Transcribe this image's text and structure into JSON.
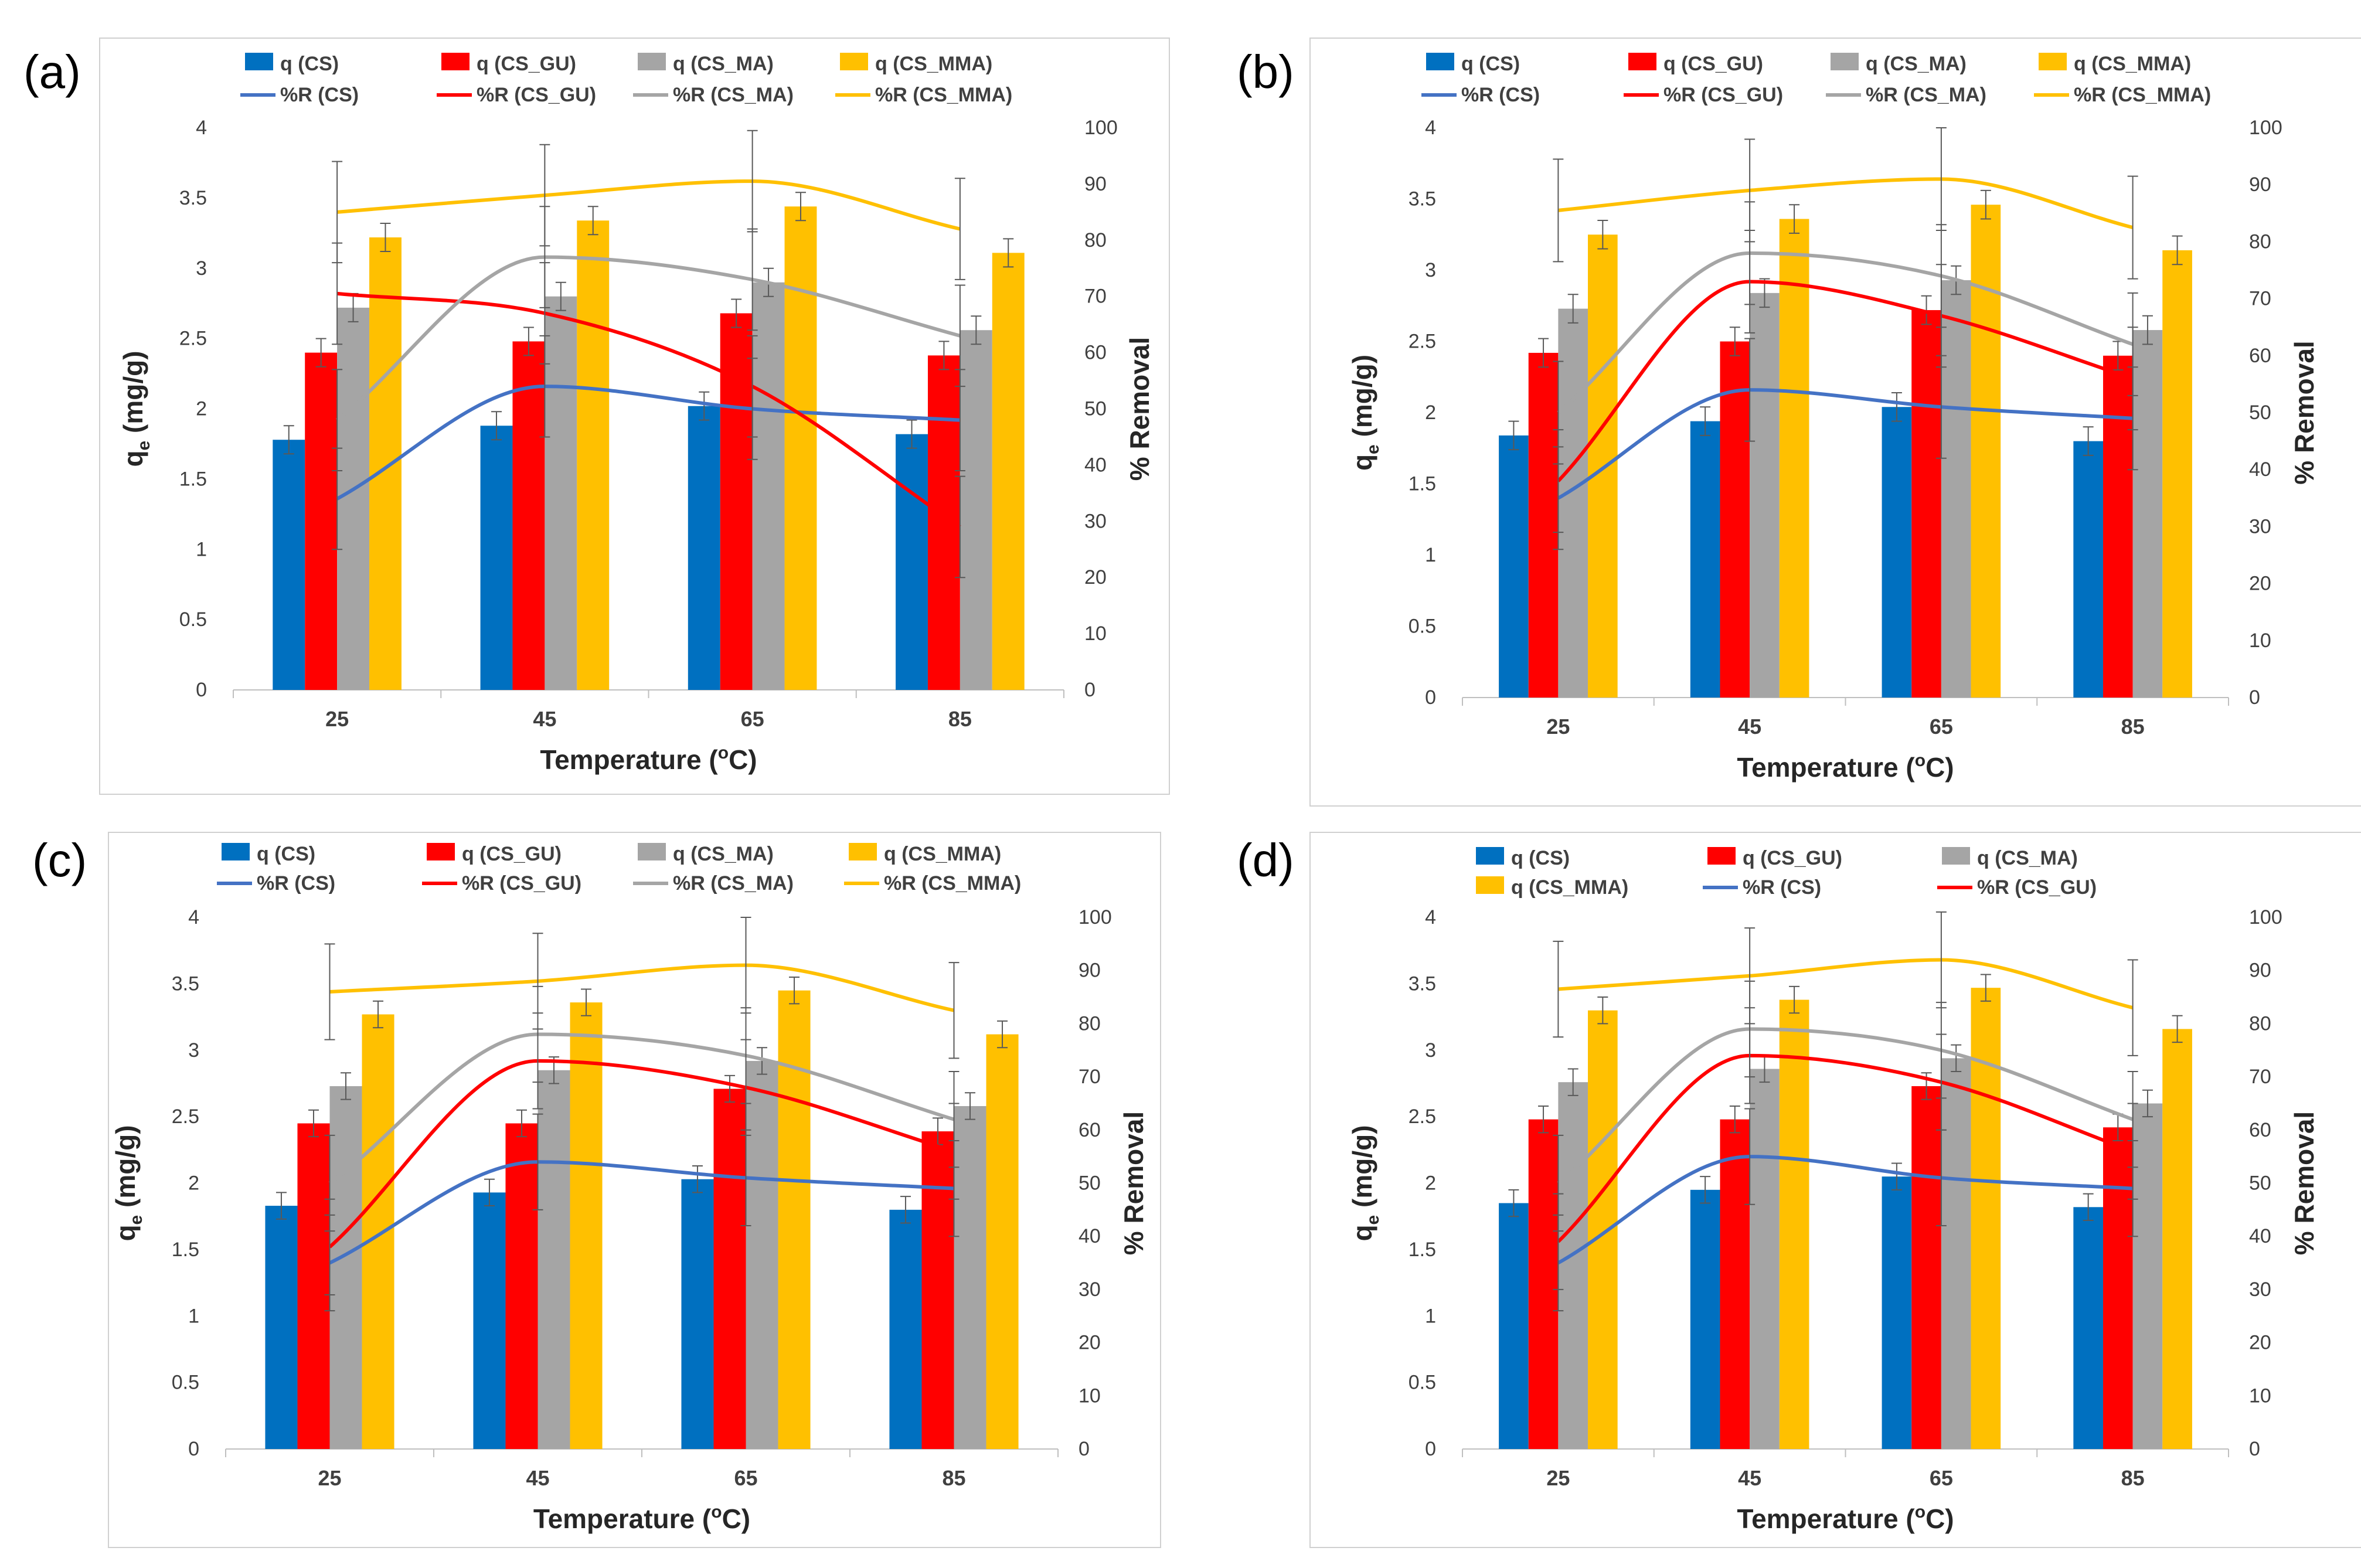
{
  "series_colors": {
    "q (CS)": "#0070c0",
    "q (CS_GU)": "#ff0000",
    "q (CS_MA)": "#a5a5a5",
    "q (CS_MMA)": "#ffc000",
    "%R (CS)": "#4472c4",
    "%R (CS_GU)": "#ff0000",
    "%R (CS_MA)": "#a5a5a5",
    "%R (CS_MMA)": "#ffc000"
  },
  "chart_data": [
    {
      "panel_label": "(a)",
      "type": "bar",
      "categories": [
        "25",
        "45",
        "65",
        "85"
      ],
      "xlabel": "Temperature (",
      "xlabel_sup": "o",
      "xlabel_suffix": "C)",
      "ylabel": "q",
      "ylabel_sub": "e",
      "ylabel_suffix": " (mg/g)",
      "y2label": "% Removal",
      "ylim": [
        0,
        4
      ],
      "y2lim": [
        0,
        100
      ],
      "yticks": [
        "0",
        "0.5",
        "1",
        "1.5",
        "2",
        "2.5",
        "3",
        "3.5",
        "4"
      ],
      "y2ticks": [
        "0",
        "10",
        "20",
        "30",
        "40",
        "50",
        "60",
        "70",
        "80",
        "90",
        "100"
      ],
      "legend_rows": [
        [
          "q (CS)",
          "q (CS_GU)",
          "q (CS_MA)",
          "q (CS_MMA)"
        ],
        [
          "%R (CS)",
          "%R (CS_GU)",
          "%R (CS_MA)",
          "%R (CS_MMA)"
        ]
      ],
      "bar_series": [
        {
          "name": "q (CS)",
          "values": [
            1.78,
            1.88,
            2.02,
            1.82
          ]
        },
        {
          "name": "q (CS_GU)",
          "values": [
            2.4,
            2.48,
            2.68,
            2.38
          ]
        },
        {
          "name": "q (CS_MA)",
          "values": [
            2.72,
            2.8,
            2.9,
            2.56
          ]
        },
        {
          "name": "q (CS_MMA)",
          "values": [
            3.22,
            3.34,
            3.44,
            3.11
          ]
        }
      ],
      "line_series": [
        {
          "name": "%R (CS)",
          "values": [
            34,
            54,
            50,
            48
          ]
        },
        {
          "name": "%R (CS_GU)",
          "values": [
            70.5,
            67,
            54,
            29
          ]
        },
        {
          "name": "%R (CS_MA)",
          "values": [
            48,
            77,
            73,
            63
          ]
        },
        {
          "name": "%R (CS_MMA)",
          "values": [
            85,
            88,
            90.5,
            82
          ]
        }
      ]
    },
    {
      "panel_label": "(b)",
      "type": "bar",
      "categories": [
        "25",
        "45",
        "65",
        "85"
      ],
      "xlabel": "Temperature (",
      "xlabel_sup": "o",
      "xlabel_suffix": "C)",
      "ylabel": "q",
      "ylabel_sub": "e",
      "ylabel_suffix": " (mg/g)",
      "y2label": "% Removal",
      "ylim": [
        0,
        4
      ],
      "y2lim": [
        0,
        100
      ],
      "yticks": [
        "0",
        "0.5",
        "1",
        "1.5",
        "2",
        "2.5",
        "3",
        "3.5",
        "4"
      ],
      "y2ticks": [
        "0",
        "10",
        "20",
        "30",
        "40",
        "50",
        "60",
        "70",
        "80",
        "90",
        "100"
      ],
      "legend_rows": [
        [
          "q (CS)",
          "q (CS_GU)",
          "q (CS_MA)",
          "q (CS_MMA)"
        ],
        [
          "%R (CS)",
          "%R (CS_GU)",
          "%R (CS_MA)",
          "%R (CS_MMA)"
        ]
      ],
      "bar_series": [
        {
          "name": "q (CS)",
          "values": [
            1.84,
            1.94,
            2.04,
            1.8
          ]
        },
        {
          "name": "q (CS_GU)",
          "values": [
            2.42,
            2.5,
            2.72,
            2.4
          ]
        },
        {
          "name": "q (CS_MA)",
          "values": [
            2.73,
            2.84,
            2.93,
            2.58
          ]
        },
        {
          "name": "q (CS_MMA)",
          "values": [
            3.25,
            3.36,
            3.46,
            3.14
          ]
        }
      ],
      "line_series": [
        {
          "name": "%R (CS)",
          "values": [
            35,
            54,
            51,
            49
          ]
        },
        {
          "name": "%R (CS_GU)",
          "values": [
            38,
            73,
            67,
            56
          ]
        },
        {
          "name": "%R (CS_MA)",
          "values": [
            50,
            78,
            74,
            62
          ]
        },
        {
          "name": "%R (CS_MMA)",
          "values": [
            85.5,
            89,
            91,
            82.5
          ]
        }
      ]
    },
    {
      "panel_label": "(c)",
      "type": "bar",
      "categories": [
        "25",
        "45",
        "65",
        "85"
      ],
      "xlabel": "Temperature (",
      "xlabel_sup": "o",
      "xlabel_suffix": "C)",
      "ylabel": "q",
      "ylabel_sub": "e",
      "ylabel_suffix": " (mg/g)",
      "y2label": "% Removal",
      "ylim": [
        0,
        4
      ],
      "y2lim": [
        0,
        100
      ],
      "yticks": [
        "0",
        "0.5",
        "1",
        "1.5",
        "2",
        "2.5",
        "3",
        "3.5",
        "4"
      ],
      "y2ticks": [
        "0",
        "10",
        "20",
        "30",
        "40",
        "50",
        "60",
        "70",
        "80",
        "90",
        "100"
      ],
      "legend_rows": [
        [
          "q (CS)",
          "q (CS_GU)",
          "q (CS_MA)",
          "q (CS_MMA)"
        ],
        [
          "%R (CS)",
          "%R (CS_GU)",
          "%R (CS_MA)",
          "%R (CS_MMA)"
        ]
      ],
      "bar_series": [
        {
          "name": "q (CS)",
          "values": [
            1.83,
            1.93,
            2.03,
            1.8
          ]
        },
        {
          "name": "q (CS_GU)",
          "values": [
            2.45,
            2.45,
            2.71,
            2.39
          ]
        },
        {
          "name": "q (CS_MA)",
          "values": [
            2.73,
            2.85,
            2.92,
            2.58
          ]
        },
        {
          "name": "q (CS_MMA)",
          "values": [
            3.27,
            3.36,
            3.45,
            3.12
          ]
        }
      ],
      "line_series": [
        {
          "name": "%R (CS)",
          "values": [
            35,
            54,
            51,
            49
          ]
        },
        {
          "name": "%R (CS_GU)",
          "values": [
            38,
            73,
            68,
            56
          ]
        },
        {
          "name": "%R (CS_MA)",
          "values": [
            50,
            78,
            74,
            62
          ]
        },
        {
          "name": "%R (CS_MMA)",
          "values": [
            86,
            88,
            91,
            82.5
          ]
        }
      ]
    },
    {
      "panel_label": "(d)",
      "type": "bar",
      "categories": [
        "25",
        "45",
        "65",
        "85"
      ],
      "xlabel": "Temperature (",
      "xlabel_sup": "o",
      "xlabel_suffix": "C)",
      "ylabel": "q",
      "ylabel_sub": "e",
      "ylabel_suffix": " (mg/g)",
      "y2label": "% Removal",
      "ylim": [
        0,
        4
      ],
      "y2lim": [
        0,
        100
      ],
      "yticks": [
        "0",
        "0.5",
        "1",
        "1.5",
        "2",
        "2.5",
        "3",
        "3.5",
        "4"
      ],
      "y2ticks": [
        "0",
        "10",
        "20",
        "30",
        "40",
        "50",
        "60",
        "70",
        "80",
        "90",
        "100"
      ],
      "legend_rows": [
        [
          "q (CS)",
          "q (CS_GU)",
          "q (CS_MA)"
        ],
        [
          "q (CS_MMA)",
          "%R (CS)",
          "%R (CS_GU)"
        ]
      ],
      "bar_series": [
        {
          "name": "q (CS)",
          "values": [
            1.85,
            1.95,
            2.05,
            1.82
          ]
        },
        {
          "name": "q (CS_GU)",
          "values": [
            2.48,
            2.48,
            2.73,
            2.42
          ]
        },
        {
          "name": "q (CS_MA)",
          "values": [
            2.76,
            2.86,
            2.94,
            2.6
          ]
        },
        {
          "name": "q (CS_MMA)",
          "values": [
            3.3,
            3.38,
            3.47,
            3.16
          ]
        }
      ],
      "line_series": [
        {
          "name": "%R (CS)",
          "values": [
            35,
            55,
            51,
            49
          ]
        },
        {
          "name": "%R (CS_GU)",
          "values": [
            39,
            74,
            69,
            56
          ]
        },
        {
          "name": "%R (CS_MA)",
          "values": [
            50,
            79,
            75,
            62
          ]
        },
        {
          "name": "%R (CS_MMA)",
          "values": [
            86.5,
            89,
            92,
            83
          ]
        }
      ]
    }
  ]
}
